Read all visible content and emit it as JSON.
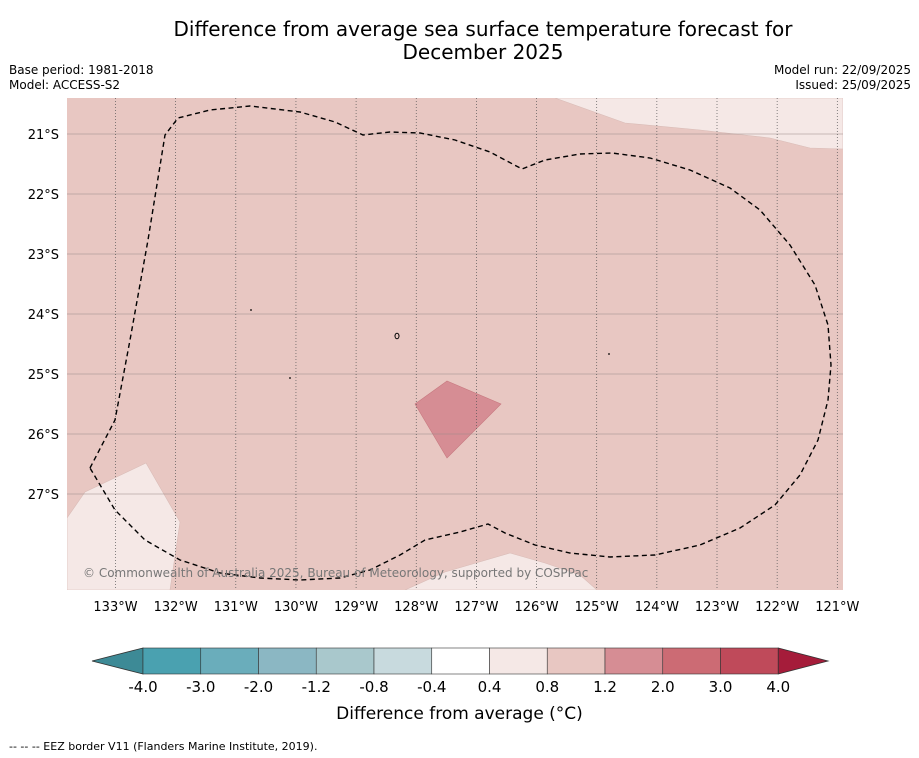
{
  "title_line1": "Difference from average sea surface temperature forecast for",
  "title_line2": "December 2025",
  "base_period": "Base period: 1981-2018",
  "model": "Model: ACCESS-S2",
  "model_run": "Model run: 22/09/2025",
  "issued": "Issued: 25/09/2025",
  "copyright": "© Commonwealth of Australia 2025, Bureau of Meteorology, supported by COSPPac",
  "lat_labels": [
    "21°S",
    "22°S",
    "23°S",
    "24°S",
    "25°S",
    "26°S",
    "27°S"
  ],
  "lon_labels": [
    "133°W",
    "132°W",
    "131°W",
    "130°W",
    "129°W",
    "128°W",
    "127°W",
    "126°W",
    "125°W",
    "124°W",
    "123°W",
    "122°W",
    "121°W"
  ],
  "colorbar": {
    "labels": [
      "-4.0",
      "-3.0",
      "-2.0",
      "-1.2",
      "-0.8",
      "-0.4",
      "0.4",
      "0.8",
      "1.2",
      "2.0",
      "3.0",
      "4.0"
    ],
    "colors": [
      "#3d8a96",
      "#4aa1b0",
      "#6aadbb",
      "#8bb7c3",
      "#a9c8cc",
      "#c8dade",
      "#ffffff",
      "#f5e8e6",
      "#e8c7c2",
      "#d68d94",
      "#cc6b74",
      "#bf4a5a",
      "#a51c3a"
    ],
    "title": "Difference from average (°C)"
  },
  "footnote": "--  --  -- EEZ border V11 (Flanders Marine Institute, 2019)."
}
